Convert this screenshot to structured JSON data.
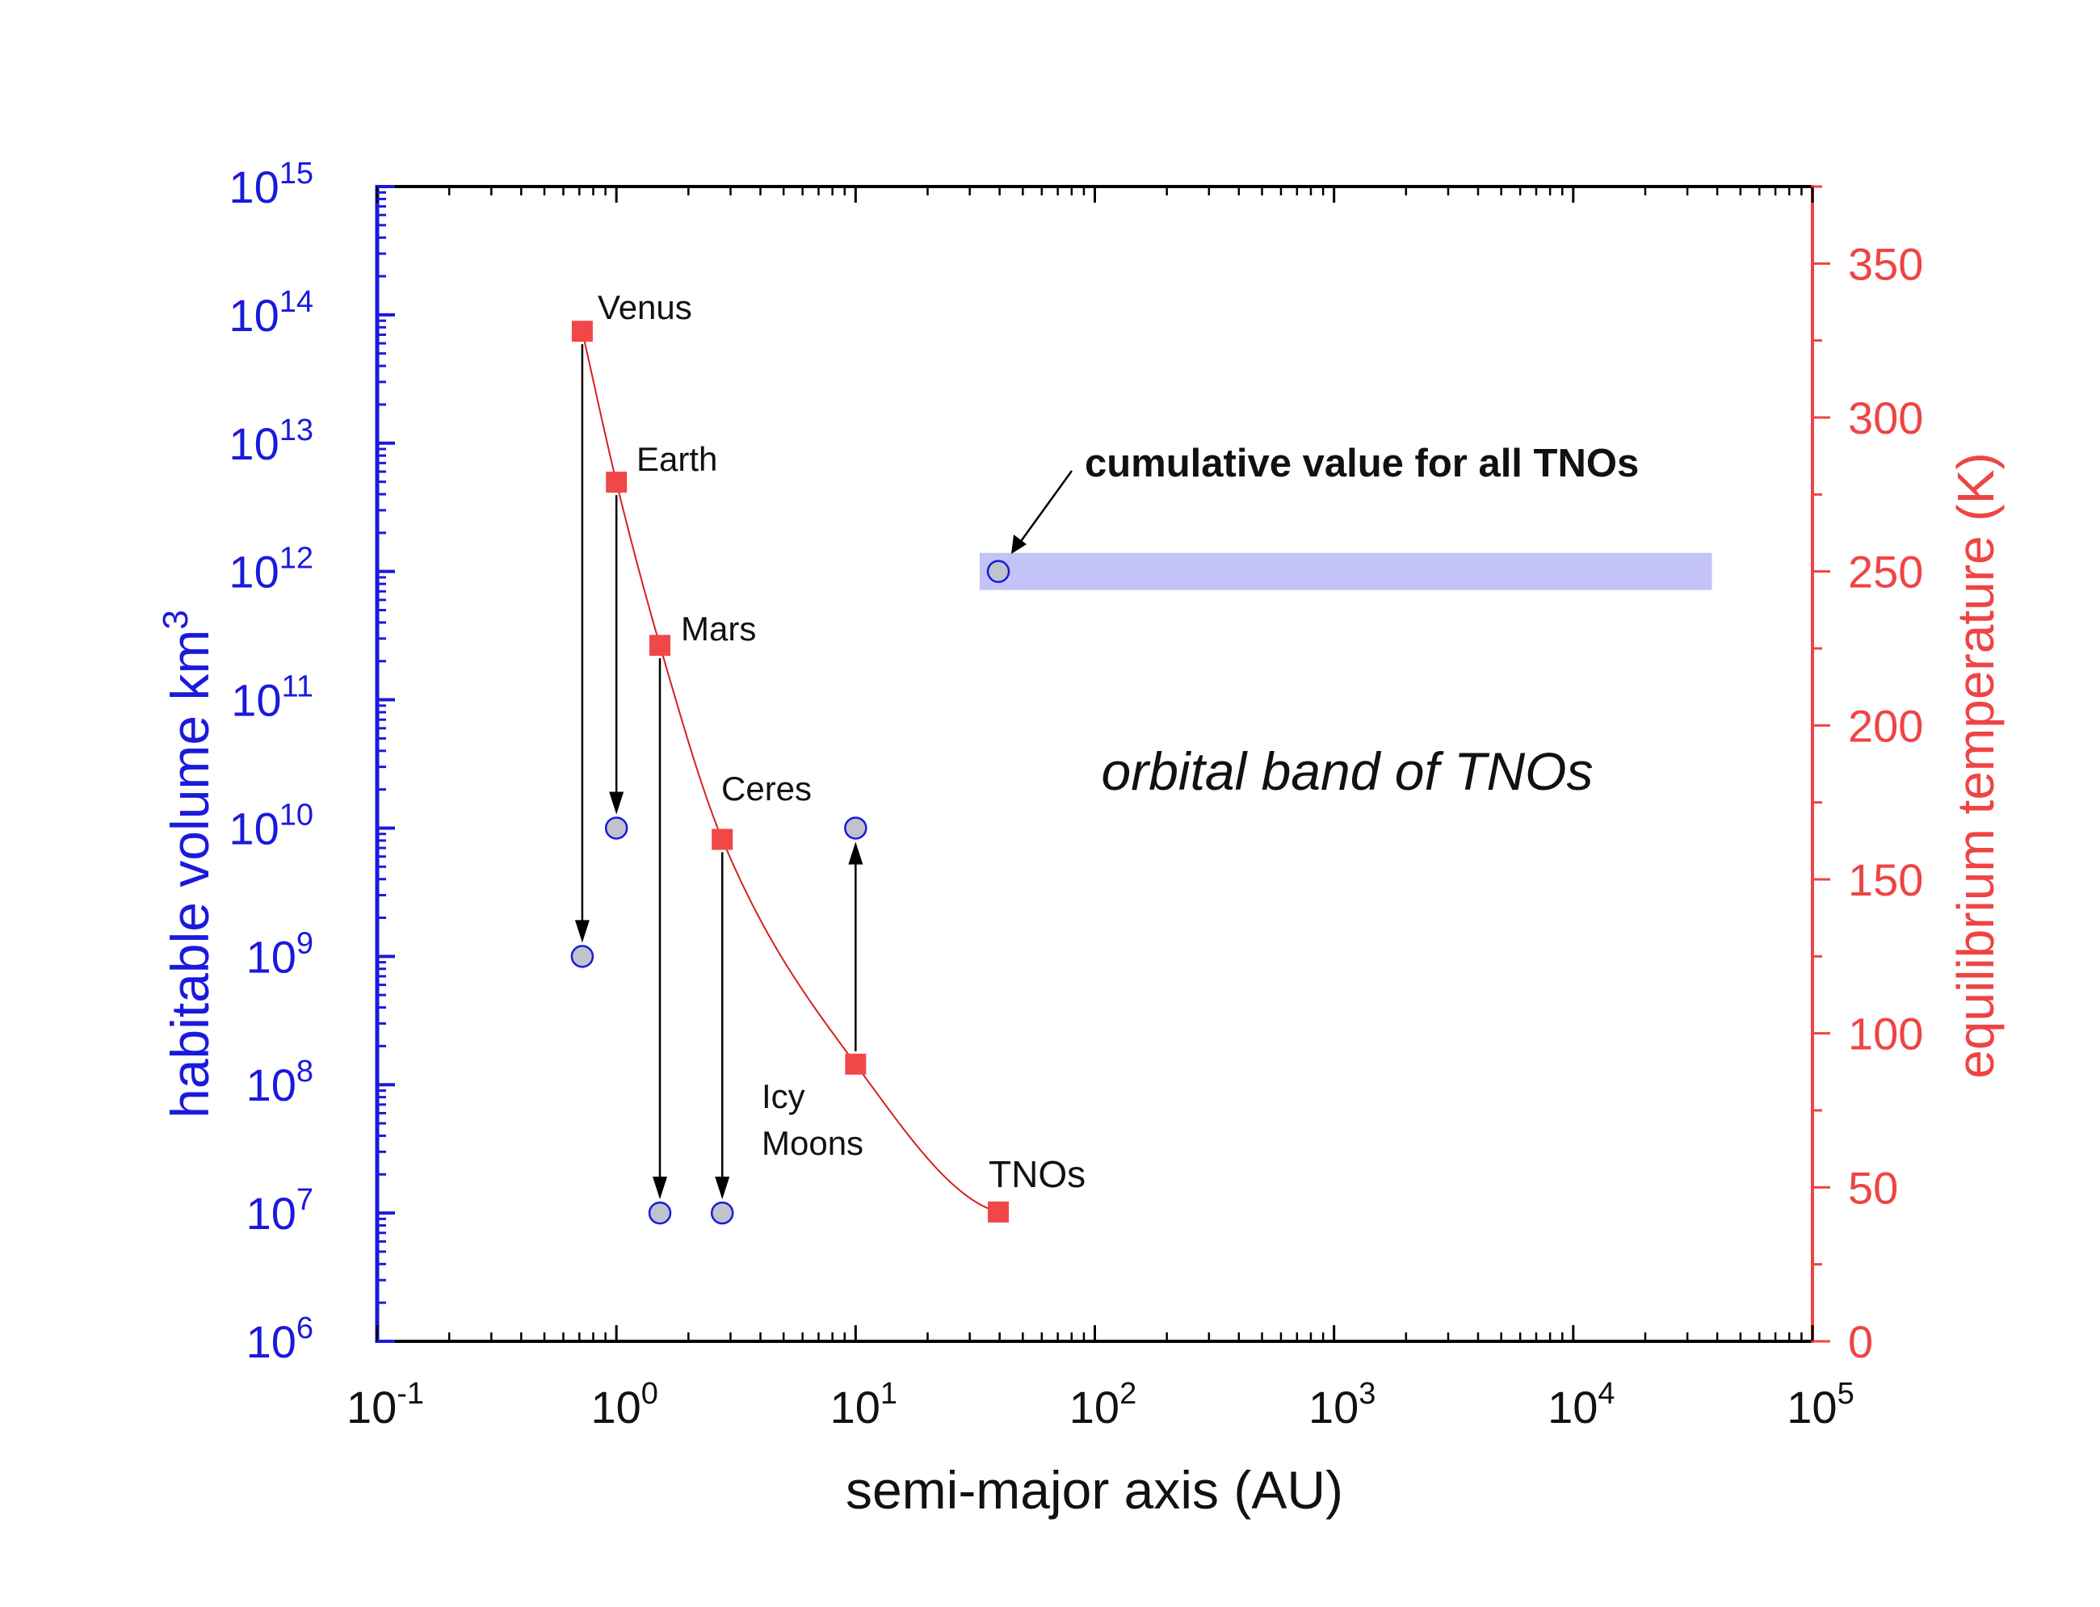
{
  "colors": {
    "left_axis": "#1a1adc",
    "right_axis": "#ef4444",
    "temperature_marker": "#f04848",
    "volume_marker_fill": "#c0c2cc",
    "volume_marker_stroke": "#1a1adc",
    "band": "#c3c3f8",
    "curve": "#d62020",
    "arrow": "#000000",
    "text": "#111111"
  },
  "chart_data": {
    "type": "scatter",
    "title": "",
    "xlabel": "semi-major axis (AU)",
    "ylabel_left": "habitable volume km",
    "ylabel_left_sup": "3",
    "ylabel_right": "equilibrium temperature (K)",
    "x_scale": "log",
    "xlim": [
      0.1,
      100000
    ],
    "x_ticks": [
      {
        "base": "10",
        "exp": "-1",
        "value": 0.1
      },
      {
        "base": "10",
        "exp": "0",
        "value": 1
      },
      {
        "base": "10",
        "exp": "1",
        "value": 10
      },
      {
        "base": "10",
        "exp": "2",
        "value": 100
      },
      {
        "base": "10",
        "exp": "3",
        "value": 1000
      },
      {
        "base": "10",
        "exp": "4",
        "value": 10000
      },
      {
        "base": "10",
        "exp": "5",
        "value": 100000
      }
    ],
    "y_left_scale": "log",
    "ylim_left": [
      1000000,
      1000000000000000
    ],
    "y_left_ticks": [
      {
        "base": "10",
        "exp": "6",
        "value": 1000000.0
      },
      {
        "base": "10",
        "exp": "7",
        "value": 10000000.0
      },
      {
        "base": "10",
        "exp": "8",
        "value": 100000000.0
      },
      {
        "base": "10",
        "exp": "9",
        "value": 1000000000.0
      },
      {
        "base": "10",
        "exp": "10",
        "value": 10000000000.0
      },
      {
        "base": "10",
        "exp": "11",
        "value": 100000000000.0
      },
      {
        "base": "10",
        "exp": "12",
        "value": 1000000000000.0
      },
      {
        "base": "10",
        "exp": "13",
        "value": 10000000000000.0
      },
      {
        "base": "10",
        "exp": "14",
        "value": 100000000000000.0
      },
      {
        "base": "10",
        "exp": "15",
        "value": 1000000000000000.0
      }
    ],
    "ylim_right": [
      0,
      375
    ],
    "y_right_ticks": [
      "0",
      "50",
      "100",
      "150",
      "200",
      "250",
      "300",
      "350"
    ],
    "series": [
      {
        "name": "equilibrium temperature",
        "axis": "right",
        "marker": "square",
        "points": [
          {
            "label": "Venus",
            "x": 0.72,
            "y": 328
          },
          {
            "label": "Earth",
            "x": 1.0,
            "y": 279
          },
          {
            "label": "Mars",
            "x": 1.52,
            "y": 226
          },
          {
            "label": "Ceres",
            "x": 2.77,
            "y": 163
          },
          {
            "label": "Icy Moons",
            "x": 10,
            "y": 90
          },
          {
            "label": "TNOs",
            "x": 39.5,
            "y": 42
          }
        ]
      },
      {
        "name": "habitable volume",
        "axis": "left",
        "marker": "circle",
        "points": [
          {
            "label": "Venus",
            "x": 0.72,
            "y": 1000000000.0
          },
          {
            "label": "Earth",
            "x": 1.0,
            "y": 10000000000.0
          },
          {
            "label": "Mars",
            "x": 1.52,
            "y": 10000000.0
          },
          {
            "label": "Ceres",
            "x": 2.77,
            "y": 10000000.0
          },
          {
            "label": "Icy Moons",
            "x": 10,
            "y": 10000000000.0
          },
          {
            "label": "cumulative value for all TNOs",
            "x": 39.5,
            "y": 1000000000000.0
          }
        ]
      }
    ],
    "arrows": [
      {
        "x": 0.72,
        "from_temperature": 328,
        "to_volume": 1000000000.0
      },
      {
        "x": 1.0,
        "from_temperature": 279,
        "to_volume": 10000000000.0
      },
      {
        "x": 1.52,
        "from_temperature": 226,
        "to_volume": 10000000.0
      },
      {
        "x": 2.77,
        "from_temperature": 163,
        "to_volume": 10000000.0
      },
      {
        "x": 10,
        "from_temperature": 90,
        "to_volume": 10000000000.0
      }
    ],
    "band": {
      "x_from": 33,
      "x_to": 38000,
      "y_center": 1000000000000.0,
      "label": "orbital band of TNOs"
    },
    "annotations": {
      "planet_labels": [
        "Venus",
        "Earth",
        "Mars",
        "Ceres",
        "Icy",
        "Moons",
        "TNOs"
      ],
      "cumulative": "cumulative value for all TNOs",
      "band_label": "orbital band of TNOs"
    }
  }
}
